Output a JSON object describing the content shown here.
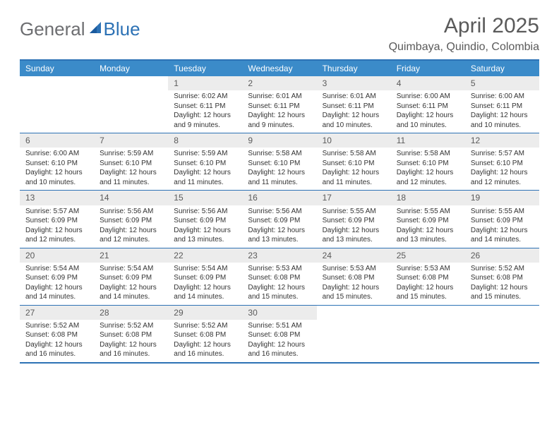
{
  "logo": {
    "general": "General",
    "blue": "Blue"
  },
  "title": "April 2025",
  "location": "Quimbaya, Quindio, Colombia",
  "colors": {
    "header_bg": "#3b8bc9",
    "border": "#2d72b5",
    "daynum_bg": "#ececec",
    "text": "#333333",
    "title_text": "#5a5a5a",
    "logo_gray": "#6d6e71",
    "logo_blue": "#2d72b5"
  },
  "weekdays": [
    "Sunday",
    "Monday",
    "Tuesday",
    "Wednesday",
    "Thursday",
    "Friday",
    "Saturday"
  ],
  "weeks": [
    [
      null,
      null,
      {
        "n": "1",
        "sr": "6:02 AM",
        "ss": "6:11 PM",
        "dl": "12 hours and 9 minutes."
      },
      {
        "n": "2",
        "sr": "6:01 AM",
        "ss": "6:11 PM",
        "dl": "12 hours and 9 minutes."
      },
      {
        "n": "3",
        "sr": "6:01 AM",
        "ss": "6:11 PM",
        "dl": "12 hours and 10 minutes."
      },
      {
        "n": "4",
        "sr": "6:00 AM",
        "ss": "6:11 PM",
        "dl": "12 hours and 10 minutes."
      },
      {
        "n": "5",
        "sr": "6:00 AM",
        "ss": "6:11 PM",
        "dl": "12 hours and 10 minutes."
      }
    ],
    [
      {
        "n": "6",
        "sr": "6:00 AM",
        "ss": "6:10 PM",
        "dl": "12 hours and 10 minutes."
      },
      {
        "n": "7",
        "sr": "5:59 AM",
        "ss": "6:10 PM",
        "dl": "12 hours and 11 minutes."
      },
      {
        "n": "8",
        "sr": "5:59 AM",
        "ss": "6:10 PM",
        "dl": "12 hours and 11 minutes."
      },
      {
        "n": "9",
        "sr": "5:58 AM",
        "ss": "6:10 PM",
        "dl": "12 hours and 11 minutes."
      },
      {
        "n": "10",
        "sr": "5:58 AM",
        "ss": "6:10 PM",
        "dl": "12 hours and 11 minutes."
      },
      {
        "n": "11",
        "sr": "5:58 AM",
        "ss": "6:10 PM",
        "dl": "12 hours and 12 minutes."
      },
      {
        "n": "12",
        "sr": "5:57 AM",
        "ss": "6:10 PM",
        "dl": "12 hours and 12 minutes."
      }
    ],
    [
      {
        "n": "13",
        "sr": "5:57 AM",
        "ss": "6:09 PM",
        "dl": "12 hours and 12 minutes."
      },
      {
        "n": "14",
        "sr": "5:56 AM",
        "ss": "6:09 PM",
        "dl": "12 hours and 12 minutes."
      },
      {
        "n": "15",
        "sr": "5:56 AM",
        "ss": "6:09 PM",
        "dl": "12 hours and 13 minutes."
      },
      {
        "n": "16",
        "sr": "5:56 AM",
        "ss": "6:09 PM",
        "dl": "12 hours and 13 minutes."
      },
      {
        "n": "17",
        "sr": "5:55 AM",
        "ss": "6:09 PM",
        "dl": "12 hours and 13 minutes."
      },
      {
        "n": "18",
        "sr": "5:55 AM",
        "ss": "6:09 PM",
        "dl": "12 hours and 13 minutes."
      },
      {
        "n": "19",
        "sr": "5:55 AM",
        "ss": "6:09 PM",
        "dl": "12 hours and 14 minutes."
      }
    ],
    [
      {
        "n": "20",
        "sr": "5:54 AM",
        "ss": "6:09 PM",
        "dl": "12 hours and 14 minutes."
      },
      {
        "n": "21",
        "sr": "5:54 AM",
        "ss": "6:09 PM",
        "dl": "12 hours and 14 minutes."
      },
      {
        "n": "22",
        "sr": "5:54 AM",
        "ss": "6:09 PM",
        "dl": "12 hours and 14 minutes."
      },
      {
        "n": "23",
        "sr": "5:53 AM",
        "ss": "6:08 PM",
        "dl": "12 hours and 15 minutes."
      },
      {
        "n": "24",
        "sr": "5:53 AM",
        "ss": "6:08 PM",
        "dl": "12 hours and 15 minutes."
      },
      {
        "n": "25",
        "sr": "5:53 AM",
        "ss": "6:08 PM",
        "dl": "12 hours and 15 minutes."
      },
      {
        "n": "26",
        "sr": "5:52 AM",
        "ss": "6:08 PM",
        "dl": "12 hours and 15 minutes."
      }
    ],
    [
      {
        "n": "27",
        "sr": "5:52 AM",
        "ss": "6:08 PM",
        "dl": "12 hours and 16 minutes."
      },
      {
        "n": "28",
        "sr": "5:52 AM",
        "ss": "6:08 PM",
        "dl": "12 hours and 16 minutes."
      },
      {
        "n": "29",
        "sr": "5:52 AM",
        "ss": "6:08 PM",
        "dl": "12 hours and 16 minutes."
      },
      {
        "n": "30",
        "sr": "5:51 AM",
        "ss": "6:08 PM",
        "dl": "12 hours and 16 minutes."
      },
      null,
      null,
      null
    ]
  ],
  "labels": {
    "sunrise": "Sunrise:",
    "sunset": "Sunset:",
    "daylight": "Daylight:"
  }
}
